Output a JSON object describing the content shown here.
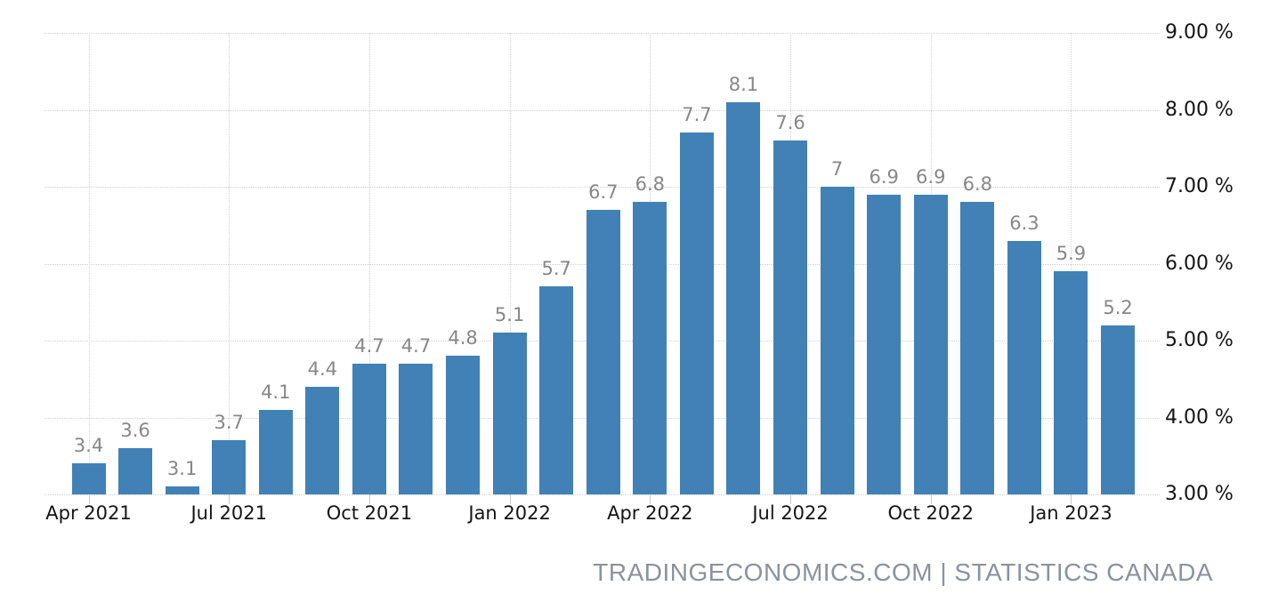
{
  "attribution": {
    "text": "TRADINGECONOMICS.COM | STATISTICS CANADA",
    "color": "#8c929b"
  },
  "chart_data": {
    "type": "bar",
    "title": "",
    "categories": [
      "Apr 2021",
      "May 2021",
      "Jun 2021",
      "Jul 2021",
      "Aug 2021",
      "Sep 2021",
      "Oct 2021",
      "Nov 2021",
      "Dec 2021",
      "Jan 2022",
      "Feb 2022",
      "Mar 2022",
      "Apr 2022",
      "May 2022",
      "Jun 2022",
      "Jul 2022",
      "Aug 2022",
      "Sep 2022",
      "Oct 2022",
      "Nov 2022",
      "Dec 2022",
      "Jan 2023",
      "Feb 2023"
    ],
    "values": [
      3.4,
      3.6,
      3.1,
      3.7,
      4.1,
      4.4,
      4.7,
      4.7,
      4.8,
      5.1,
      5.7,
      6.7,
      6.8,
      7.7,
      8.1,
      7.6,
      7,
      6.9,
      6.9,
      6.8,
      6.3,
      5.9,
      5.2
    ],
    "data_labels": [
      "3.4",
      "3.6",
      "3.1",
      "3.7",
      "4.1",
      "4.4",
      "4.7",
      "4.7",
      "4.8",
      "5.1",
      "5.7",
      "6.7",
      "6.8",
      "7.7",
      "8.1",
      "7.6",
      "7",
      "6.9",
      "6.9",
      "6.8",
      "6.3",
      "5.9",
      "5.2"
    ],
    "x_tick_labels": [
      "Apr 2021",
      "Jul 2021",
      "Oct 2021",
      "Jan 2022",
      "Apr 2022",
      "Jul 2022",
      "Oct 2022",
      "Jan 2023"
    ],
    "x_tick_indices": [
      0,
      3,
      6,
      9,
      12,
      15,
      18,
      21
    ],
    "y_tick_labels": [
      "9.00 %",
      "8.00 %",
      "7.00 %",
      "6.00 %",
      "5.00 %",
      "4.00 %",
      "3.00 %"
    ],
    "y_tick_values": [
      9,
      8,
      7,
      6,
      5,
      4,
      3
    ],
    "ylim": [
      3,
      9
    ],
    "xlabel": "",
    "ylabel": "",
    "y_axis_side": "right",
    "grid": "dotted",
    "legend": "none",
    "bar_color": "#4181b6",
    "data_label_color": "#878787",
    "axis_text_color": "#141414",
    "grid_color": "#d0d0d0"
  }
}
